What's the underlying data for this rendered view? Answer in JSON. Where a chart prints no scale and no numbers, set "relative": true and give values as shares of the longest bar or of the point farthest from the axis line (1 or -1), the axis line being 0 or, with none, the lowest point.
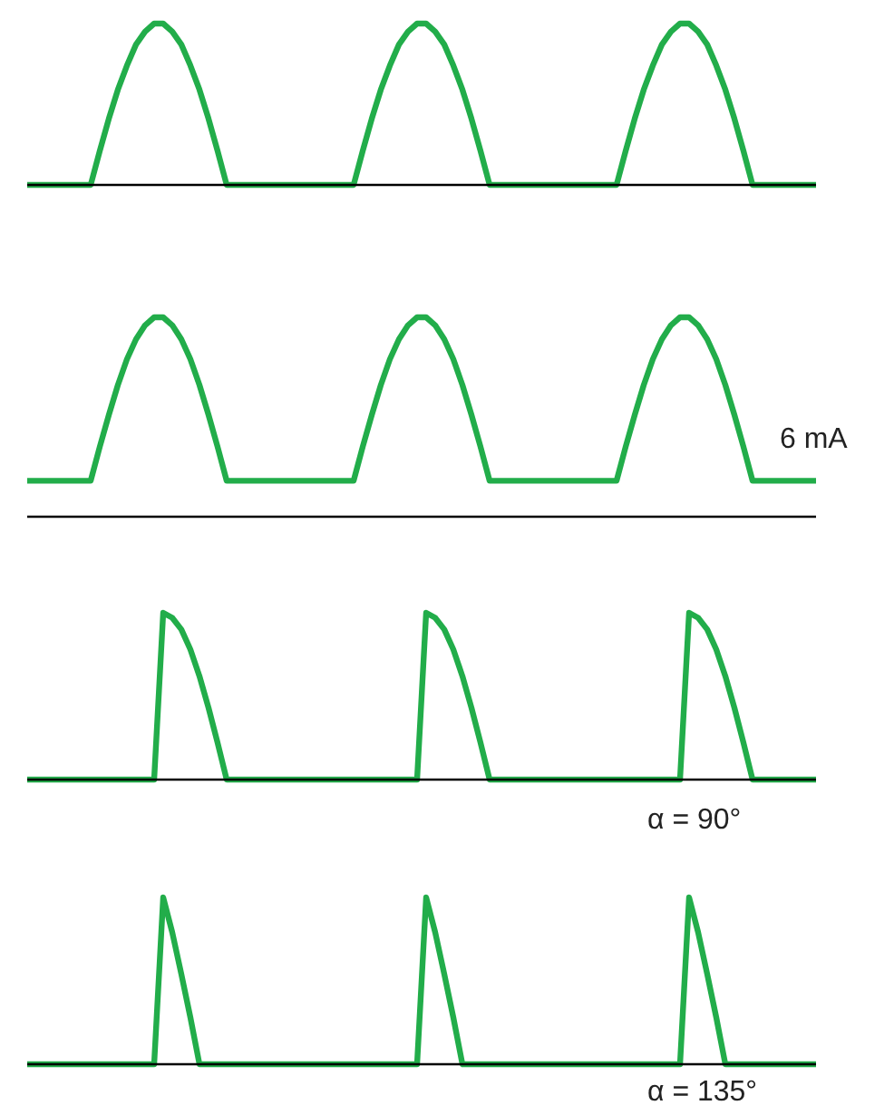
{
  "chart_data": [
    {
      "type": "line",
      "relative": true,
      "marker": "none",
      "categories": [
        null,
        null,
        null,
        null,
        null,
        null,
        null,
        null,
        null,
        null,
        null,
        null,
        null,
        null,
        null,
        null,
        null,
        null,
        null,
        null,
        null,
        null,
        null,
        null,
        null,
        null,
        null,
        null,
        null,
        null,
        null,
        null,
        null,
        null,
        null,
        null,
        null,
        null,
        null,
        null,
        null,
        null,
        null,
        null,
        null,
        null,
        null,
        null,
        null,
        null,
        null,
        null,
        null,
        null,
        null,
        null,
        null,
        null,
        null,
        null,
        null,
        null,
        null,
        null,
        null,
        null,
        null,
        null,
        null,
        null,
        null,
        null,
        null,
        null,
        null,
        null,
        null,
        null,
        null,
        null,
        null,
        null,
        null,
        null,
        null,
        null,
        null,
        null
      ],
      "series": [
        {
          "color": "#22ad4a",
          "values": [
            0,
            0,
            0,
            0,
            0,
            0,
            0,
            0,
            0.21,
            0.41,
            0.59,
            0.74,
            0.87,
            0.95,
            1,
            1,
            0.95,
            0.87,
            0.74,
            0.59,
            0.41,
            0.21,
            0,
            0,
            0,
            0,
            0,
            0,
            0,
            0,
            0,
            0,
            0,
            0,
            0,
            0,
            0,
            0.21,
            0.41,
            0.59,
            0.74,
            0.87,
            0.95,
            1,
            1,
            0.95,
            0.87,
            0.74,
            0.59,
            0.41,
            0.21,
            0,
            0,
            0,
            0,
            0,
            0,
            0,
            0,
            0,
            0,
            0,
            0,
            0,
            0,
            0,
            0.21,
            0.41,
            0.59,
            0.74,
            0.87,
            0.95,
            1,
            1,
            0.95,
            0.87,
            0.74,
            0.59,
            0.41,
            0.21,
            0,
            0,
            0,
            0,
            0,
            0,
            0,
            0
          ]
        }
      ]
    },
    {
      "type": "line",
      "relative": true,
      "marker": "none",
      "annotations": [
        "6 mA"
      ],
      "categories": [
        null,
        null,
        null,
        null,
        null,
        null,
        null,
        null,
        null,
        null,
        null,
        null,
        null,
        null,
        null,
        null,
        null,
        null,
        null,
        null,
        null,
        null,
        null,
        null,
        null,
        null,
        null,
        null,
        null,
        null,
        null,
        null,
        null,
        null,
        null,
        null,
        null,
        null,
        null,
        null,
        null,
        null,
        null,
        null,
        null,
        null,
        null,
        null,
        null,
        null,
        null,
        null,
        null,
        null,
        null,
        null,
        null,
        null,
        null,
        null,
        null,
        null,
        null,
        null,
        null,
        null,
        null,
        null,
        null,
        null,
        null,
        null,
        null,
        null,
        null,
        null,
        null,
        null,
        null,
        null,
        null,
        null,
        null,
        null,
        null,
        null,
        null,
        null
      ],
      "series": [
        {
          "color": "#22ad4a",
          "values": [
            0.18,
            0.18,
            0.18,
            0.18,
            0.18,
            0.18,
            0.18,
            0.18,
            0.35,
            0.51,
            0.66,
            0.79,
            0.89,
            0.96,
            1,
            1,
            0.96,
            0.89,
            0.79,
            0.66,
            0.51,
            0.35,
            0.18,
            0.18,
            0.18,
            0.18,
            0.18,
            0.18,
            0.18,
            0.18,
            0.18,
            0.18,
            0.18,
            0.18,
            0.18,
            0.18,
            0.18,
            0.35,
            0.51,
            0.66,
            0.79,
            0.89,
            0.96,
            1,
            1,
            0.96,
            0.89,
            0.79,
            0.66,
            0.51,
            0.35,
            0.18,
            0.18,
            0.18,
            0.18,
            0.18,
            0.18,
            0.18,
            0.18,
            0.18,
            0.18,
            0.18,
            0.18,
            0.18,
            0.18,
            0.18,
            0.35,
            0.51,
            0.66,
            0.79,
            0.89,
            0.96,
            1,
            1,
            0.96,
            0.89,
            0.79,
            0.66,
            0.51,
            0.35,
            0.18,
            0.18,
            0.18,
            0.18,
            0.18,
            0.18,
            0.18,
            0.18
          ]
        }
      ]
    },
    {
      "type": "line",
      "relative": true,
      "marker": "none",
      "annotations": [
        "α = 90°"
      ],
      "categories": [
        null,
        null,
        null,
        null,
        null,
        null,
        null,
        null,
        null,
        null,
        null,
        null,
        null,
        null,
        null,
        null,
        null,
        null,
        null,
        null,
        null,
        null,
        null,
        null,
        null,
        null,
        null,
        null,
        null,
        null,
        null,
        null,
        null,
        null,
        null,
        null,
        null,
        null,
        null,
        null,
        null,
        null,
        null,
        null,
        null,
        null,
        null,
        null,
        null,
        null,
        null,
        null,
        null,
        null,
        null,
        null,
        null,
        null,
        null,
        null,
        null,
        null,
        null,
        null,
        null,
        null,
        null,
        null,
        null,
        null,
        null,
        null,
        null,
        null,
        null,
        null,
        null,
        null,
        null,
        null,
        null,
        null,
        null,
        null,
        null,
        null,
        null,
        null
      ],
      "series": [
        {
          "color": "#22ad4a",
          "values": [
            0,
            0,
            0,
            0,
            0,
            0,
            0,
            0,
            0,
            0,
            0,
            0,
            0,
            0,
            0,
            1,
            0.97,
            0.9,
            0.78,
            0.62,
            0.43,
            0.22,
            0,
            0,
            0,
            0,
            0,
            0,
            0,
            0,
            0,
            0,
            0,
            0,
            0,
            0,
            0,
            0,
            0,
            0,
            0,
            0,
            0,
            0,
            1,
            0.97,
            0.9,
            0.78,
            0.62,
            0.43,
            0.22,
            0,
            0,
            0,
            0,
            0,
            0,
            0,
            0,
            0,
            0,
            0,
            0,
            0,
            0,
            0,
            0,
            0,
            0,
            0,
            0,
            0,
            0,
            1,
            0.97,
            0.9,
            0.78,
            0.62,
            0.43,
            0.22,
            0,
            0,
            0,
            0,
            0,
            0,
            0,
            0
          ]
        }
      ]
    },
    {
      "type": "line",
      "relative": true,
      "marker": "none",
      "annotations": [
        "α = 135°"
      ],
      "categories": [
        null,
        null,
        null,
        null,
        null,
        null,
        null,
        null,
        null,
        null,
        null,
        null,
        null,
        null,
        null,
        null,
        null,
        null,
        null,
        null,
        null,
        null,
        null,
        null,
        null,
        null,
        null,
        null,
        null,
        null,
        null,
        null,
        null,
        null,
        null,
        null,
        null,
        null,
        null,
        null,
        null,
        null,
        null,
        null,
        null,
        null,
        null,
        null,
        null,
        null,
        null,
        null,
        null,
        null,
        null,
        null,
        null,
        null,
        null,
        null,
        null,
        null,
        null,
        null,
        null,
        null,
        null,
        null,
        null,
        null,
        null,
        null,
        null,
        null,
        null,
        null,
        null,
        null,
        null,
        null,
        null,
        null,
        null,
        null,
        null,
        null,
        null,
        null
      ],
      "series": [
        {
          "color": "#22ad4a",
          "values": [
            0,
            0,
            0,
            0,
            0,
            0,
            0,
            0,
            0,
            0,
            0,
            0,
            0,
            0,
            0,
            1,
            0.79,
            0.54,
            0.28,
            0,
            0,
            0,
            0,
            0,
            0,
            0,
            0,
            0,
            0,
            0,
            0,
            0,
            0,
            0,
            0,
            0,
            0,
            0,
            0,
            0,
            0,
            0,
            0,
            0,
            1,
            0.79,
            0.54,
            0.28,
            0,
            0,
            0,
            0,
            0,
            0,
            0,
            0,
            0,
            0,
            0,
            0,
            0,
            0,
            0,
            0,
            0,
            0,
            0,
            0,
            0,
            0,
            0,
            0,
            0,
            1,
            0.79,
            0.54,
            0.28,
            0,
            0,
            0,
            0,
            0,
            0,
            0,
            0,
            0,
            0,
            0
          ]
        }
      ]
    }
  ]
}
